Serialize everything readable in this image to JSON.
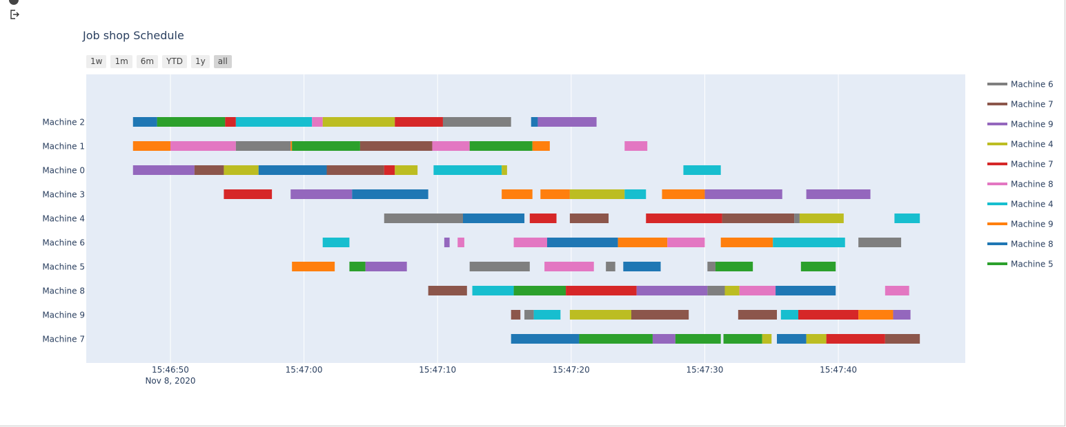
{
  "title": "Job shop Schedule",
  "range_buttons": [
    {
      "label": "1w",
      "active": false
    },
    {
      "label": "1m",
      "active": false
    },
    {
      "label": "6m",
      "active": false
    },
    {
      "label": "YTD",
      "active": false
    },
    {
      "label": "1y",
      "active": false
    },
    {
      "label": "all",
      "active": true
    }
  ],
  "chart_data": {
    "type": "gantt",
    "title": "Job shop Schedule",
    "x_axis": {
      "unit": "seconds since 15:46:50",
      "range": [
        -6.3,
        59.5
      ],
      "ticks": [
        {
          "value": 0,
          "label": "15:46:50",
          "sublabel": "Nov 8, 2020"
        },
        {
          "value": 10,
          "label": "15:47:00"
        },
        {
          "value": 20,
          "label": "15:47:10"
        },
        {
          "value": 30,
          "label": "15:47:20"
        },
        {
          "value": 40,
          "label": "15:47:30"
        },
        {
          "value": 50,
          "label": "15:47:40"
        }
      ]
    },
    "categories": [
      "Machine 2",
      "Machine 1",
      "Machine 0",
      "Machine 3",
      "Machine 4",
      "Machine 6",
      "Machine 5",
      "Machine 8",
      "Machine 9",
      "Machine 7"
    ],
    "legend": [
      {
        "name": "Machine 6",
        "color": "#7f7f7f"
      },
      {
        "name": "Machine 7",
        "color": "#8c564b"
      },
      {
        "name": "Machine 9",
        "color": "#9467bd"
      },
      {
        "name": "Machine 4",
        "color": "#bcbd22"
      },
      {
        "name": "Machine 7",
        "color": "#d62728"
      },
      {
        "name": "Machine 8",
        "color": "#e377c2"
      },
      {
        "name": "Machine 4",
        "color": "#17becf"
      },
      {
        "name": "Machine 9",
        "color": "#ff7f0e"
      },
      {
        "name": "Machine 8",
        "color": "#1f77b4"
      },
      {
        "name": "Machine 5",
        "color": "#2ca02c"
      }
    ],
    "tasks": [
      {
        "row": "Machine 2",
        "start": -2.8,
        "end": -1.0,
        "color": "#1f77b4"
      },
      {
        "row": "Machine 2",
        "start": -1.0,
        "end": 4.1,
        "color": "#2ca02c"
      },
      {
        "row": "Machine 2",
        "start": 4.1,
        "end": 4.9,
        "color": "#d62728"
      },
      {
        "row": "Machine 2",
        "start": 4.9,
        "end": 10.6,
        "color": "#17becf"
      },
      {
        "row": "Machine 2",
        "start": 10.6,
        "end": 11.4,
        "color": "#e377c2"
      },
      {
        "row": "Machine 2",
        "start": 11.4,
        "end": 16.8,
        "color": "#bcbd22"
      },
      {
        "row": "Machine 2",
        "start": 16.8,
        "end": 20.4,
        "color": "#d62728"
      },
      {
        "row": "Machine 2",
        "start": 20.4,
        "end": 25.5,
        "color": "#7f7f7f"
      },
      {
        "row": "Machine 2",
        "start": 27.0,
        "end": 27.5,
        "color": "#1f77b4"
      },
      {
        "row": "Machine 2",
        "start": 27.5,
        "end": 31.9,
        "color": "#9467bd"
      },
      {
        "row": "Machine 1",
        "start": -2.8,
        "end": 0.0,
        "color": "#ff7f0e"
      },
      {
        "row": "Machine 1",
        "start": 0.0,
        "end": 4.9,
        "color": "#e377c2"
      },
      {
        "row": "Machine 1",
        "start": 4.9,
        "end": 9.0,
        "color": "#7f7f7f"
      },
      {
        "row": "Machine 1",
        "start": 9.0,
        "end": 9.1,
        "color": "#ff7f0e"
      },
      {
        "row": "Machine 1",
        "start": 9.1,
        "end": 14.2,
        "color": "#2ca02c"
      },
      {
        "row": "Machine 1",
        "start": 14.2,
        "end": 19.6,
        "color": "#8c564b"
      },
      {
        "row": "Machine 1",
        "start": 19.6,
        "end": 22.4,
        "color": "#e377c2"
      },
      {
        "row": "Machine 1",
        "start": 22.4,
        "end": 27.1,
        "color": "#2ca02c"
      },
      {
        "row": "Machine 1",
        "start": 27.1,
        "end": 28.4,
        "color": "#ff7f0e"
      },
      {
        "row": "Machine 1",
        "start": 34.0,
        "end": 35.7,
        "color": "#e377c2"
      },
      {
        "row": "Machine 0",
        "start": -2.8,
        "end": 1.8,
        "color": "#9467bd"
      },
      {
        "row": "Machine 0",
        "start": 1.8,
        "end": 4.0,
        "color": "#8c564b"
      },
      {
        "row": "Machine 0",
        "start": 4.0,
        "end": 6.6,
        "color": "#bcbd22"
      },
      {
        "row": "Machine 0",
        "start": 6.6,
        "end": 11.7,
        "color": "#1f77b4"
      },
      {
        "row": "Machine 0",
        "start": 11.7,
        "end": 16.0,
        "color": "#8c564b"
      },
      {
        "row": "Machine 0",
        "start": 16.0,
        "end": 16.8,
        "color": "#d62728"
      },
      {
        "row": "Machine 0",
        "start": 16.8,
        "end": 18.5,
        "color": "#bcbd22"
      },
      {
        "row": "Machine 0",
        "start": 19.7,
        "end": 24.8,
        "color": "#17becf"
      },
      {
        "row": "Machine 0",
        "start": 24.8,
        "end": 25.2,
        "color": "#bcbd22"
      },
      {
        "row": "Machine 0",
        "start": 38.4,
        "end": 41.2,
        "color": "#17becf"
      },
      {
        "row": "Machine 3",
        "start": 4.0,
        "end": 7.6,
        "color": "#d62728"
      },
      {
        "row": "Machine 3",
        "start": 9.0,
        "end": 13.6,
        "color": "#9467bd"
      },
      {
        "row": "Machine 3",
        "start": 13.6,
        "end": 19.3,
        "color": "#1f77b4"
      },
      {
        "row": "Machine 3",
        "start": 24.8,
        "end": 27.1,
        "color": "#ff7f0e"
      },
      {
        "row": "Machine 3",
        "start": 27.7,
        "end": 29.9,
        "color": "#ff7f0e"
      },
      {
        "row": "Machine 3",
        "start": 29.9,
        "end": 34.0,
        "color": "#bcbd22"
      },
      {
        "row": "Machine 3",
        "start": 34.0,
        "end": 35.6,
        "color": "#17becf"
      },
      {
        "row": "Machine 3",
        "start": 36.8,
        "end": 40.0,
        "color": "#ff7f0e"
      },
      {
        "row": "Machine 3",
        "start": 40.0,
        "end": 45.8,
        "color": "#9467bd"
      },
      {
        "row": "Machine 3",
        "start": 47.6,
        "end": 52.4,
        "color": "#9467bd"
      },
      {
        "row": "Machine 4",
        "start": 16.0,
        "end": 21.9,
        "color": "#7f7f7f"
      },
      {
        "row": "Machine 4",
        "start": 21.9,
        "end": 26.5,
        "color": "#1f77b4"
      },
      {
        "row": "Machine 4",
        "start": 26.9,
        "end": 28.9,
        "color": "#d62728"
      },
      {
        "row": "Machine 4",
        "start": 29.9,
        "end": 32.8,
        "color": "#8c564b"
      },
      {
        "row": "Machine 4",
        "start": 35.6,
        "end": 41.3,
        "color": "#d62728"
      },
      {
        "row": "Machine 4",
        "start": 41.3,
        "end": 46.7,
        "color": "#8c564b"
      },
      {
        "row": "Machine 4",
        "start": 46.7,
        "end": 47.1,
        "color": "#7f7f7f"
      },
      {
        "row": "Machine 4",
        "start": 47.1,
        "end": 50.4,
        "color": "#bcbd22"
      },
      {
        "row": "Machine 4",
        "start": 54.2,
        "end": 56.1,
        "color": "#17becf"
      },
      {
        "row": "Machine 6",
        "start": 11.4,
        "end": 13.4,
        "color": "#17becf"
      },
      {
        "row": "Machine 6",
        "start": 20.5,
        "end": 20.9,
        "color": "#9467bd"
      },
      {
        "row": "Machine 6",
        "start": 21.5,
        "end": 22.0,
        "color": "#e377c2"
      },
      {
        "row": "Machine 6",
        "start": 25.7,
        "end": 28.2,
        "color": "#e377c2"
      },
      {
        "row": "Machine 6",
        "start": 28.2,
        "end": 33.5,
        "color": "#1f77b4"
      },
      {
        "row": "Machine 6",
        "start": 33.5,
        "end": 37.2,
        "color": "#ff7f0e"
      },
      {
        "row": "Machine 6",
        "start": 37.2,
        "end": 40.0,
        "color": "#e377c2"
      },
      {
        "row": "Machine 6",
        "start": 41.2,
        "end": 45.1,
        "color": "#ff7f0e"
      },
      {
        "row": "Machine 6",
        "start": 45.1,
        "end": 50.5,
        "color": "#17becf"
      },
      {
        "row": "Machine 6",
        "start": 51.5,
        "end": 54.7,
        "color": "#7f7f7f"
      },
      {
        "row": "Machine 5",
        "start": 9.1,
        "end": 12.3,
        "color": "#ff7f0e"
      },
      {
        "row": "Machine 5",
        "start": 13.4,
        "end": 14.6,
        "color": "#2ca02c"
      },
      {
        "row": "Machine 5",
        "start": 14.6,
        "end": 17.7,
        "color": "#9467bd"
      },
      {
        "row": "Machine 5",
        "start": 22.4,
        "end": 26.9,
        "color": "#7f7f7f"
      },
      {
        "row": "Machine 5",
        "start": 28.0,
        "end": 31.7,
        "color": "#e377c2"
      },
      {
        "row": "Machine 5",
        "start": 32.6,
        "end": 33.3,
        "color": "#7f7f7f"
      },
      {
        "row": "Machine 5",
        "start": 33.9,
        "end": 36.7,
        "color": "#1f77b4"
      },
      {
        "row": "Machine 5",
        "start": 40.2,
        "end": 40.8,
        "color": "#7f7f7f"
      },
      {
        "row": "Machine 5",
        "start": 40.8,
        "end": 43.6,
        "color": "#2ca02c"
      },
      {
        "row": "Machine 5",
        "start": 47.2,
        "end": 49.8,
        "color": "#2ca02c"
      },
      {
        "row": "Machine 8",
        "start": 19.3,
        "end": 22.2,
        "color": "#8c564b"
      },
      {
        "row": "Machine 8",
        "start": 22.6,
        "end": 25.7,
        "color": "#17becf"
      },
      {
        "row": "Machine 8",
        "start": 25.7,
        "end": 29.6,
        "color": "#2ca02c"
      },
      {
        "row": "Machine 8",
        "start": 29.6,
        "end": 34.9,
        "color": "#d62728"
      },
      {
        "row": "Machine 8",
        "start": 34.9,
        "end": 40.2,
        "color": "#9467bd"
      },
      {
        "row": "Machine 8",
        "start": 40.2,
        "end": 41.5,
        "color": "#7f7f7f"
      },
      {
        "row": "Machine 8",
        "start": 41.5,
        "end": 42.6,
        "color": "#bcbd22"
      },
      {
        "row": "Machine 8",
        "start": 42.6,
        "end": 45.3,
        "color": "#e377c2"
      },
      {
        "row": "Machine 8",
        "start": 45.3,
        "end": 49.8,
        "color": "#1f77b4"
      },
      {
        "row": "Machine 8",
        "start": 53.5,
        "end": 55.3,
        "color": "#e377c2"
      },
      {
        "row": "Machine 9",
        "start": 25.5,
        "end": 26.2,
        "color": "#8c564b"
      },
      {
        "row": "Machine 9",
        "start": 26.5,
        "end": 27.2,
        "color": "#7f7f7f"
      },
      {
        "row": "Machine 9",
        "start": 27.2,
        "end": 29.2,
        "color": "#17becf"
      },
      {
        "row": "Machine 9",
        "start": 29.9,
        "end": 34.5,
        "color": "#bcbd22"
      },
      {
        "row": "Machine 9",
        "start": 34.5,
        "end": 38.8,
        "color": "#8c564b"
      },
      {
        "row": "Machine 9",
        "start": 42.5,
        "end": 45.4,
        "color": "#8c564b"
      },
      {
        "row": "Machine 9",
        "start": 45.7,
        "end": 47.0,
        "color": "#17becf"
      },
      {
        "row": "Machine 9",
        "start": 47.0,
        "end": 51.5,
        "color": "#d62728"
      },
      {
        "row": "Machine 9",
        "start": 51.5,
        "end": 54.1,
        "color": "#ff7f0e"
      },
      {
        "row": "Machine 9",
        "start": 54.1,
        "end": 55.4,
        "color": "#9467bd"
      },
      {
        "row": "Machine 7",
        "start": 25.5,
        "end": 30.6,
        "color": "#1f77b4"
      },
      {
        "row": "Machine 7",
        "start": 30.6,
        "end": 36.1,
        "color": "#2ca02c"
      },
      {
        "row": "Machine 7",
        "start": 36.1,
        "end": 37.8,
        "color": "#9467bd"
      },
      {
        "row": "Machine 7",
        "start": 37.8,
        "end": 41.2,
        "color": "#2ca02c"
      },
      {
        "row": "Machine 7",
        "start": 41.4,
        "end": 44.3,
        "color": "#2ca02c"
      },
      {
        "row": "Machine 7",
        "start": 44.3,
        "end": 45.0,
        "color": "#bcbd22"
      },
      {
        "row": "Machine 7",
        "start": 45.4,
        "end": 47.6,
        "color": "#1f77b4"
      },
      {
        "row": "Machine 7",
        "start": 47.6,
        "end": 49.1,
        "color": "#bcbd22"
      },
      {
        "row": "Machine 7",
        "start": 49.1,
        "end": 53.5,
        "color": "#d62728"
      },
      {
        "row": "Machine 7",
        "start": 53.5,
        "end": 56.1,
        "color": "#8c564b"
      }
    ]
  }
}
